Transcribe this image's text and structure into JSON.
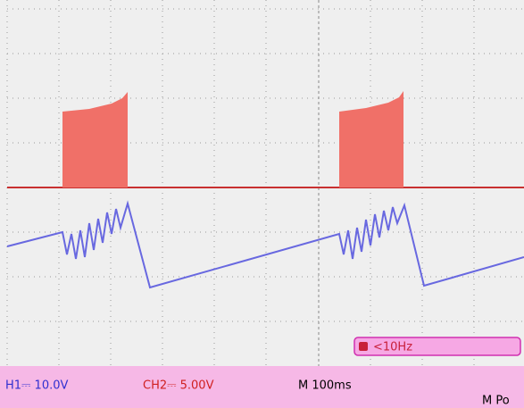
{
  "status_bar": {
    "ch1": "H1⎓ 10.0V",
    "ch2": "CH2⎓ 5.00V",
    "timebase": "M 100ms",
    "position": "M Po"
  },
  "trigger": {
    "frequency": "<10Hz"
  }
}
